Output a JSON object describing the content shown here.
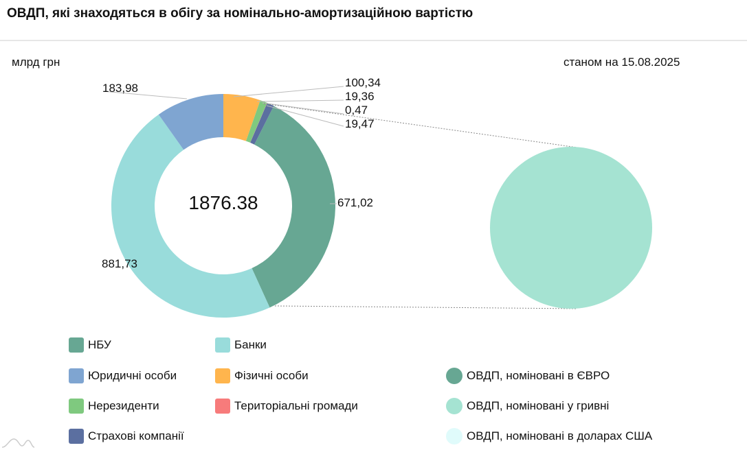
{
  "title": "ОВДП, які знаходяться в обігу за номінально-амортизаційною вартістю",
  "unit": "млрд грн",
  "date": "станом на 15.08.2025",
  "chart_data": [
    {
      "type": "pie",
      "variant": "donut",
      "total_label": "1876.38",
      "slices": [
        {
          "name": "Фізичні особи",
          "value": 100.34,
          "label": "100,34",
          "color": "#ffb54d"
        },
        {
          "name": "Нерезиденти",
          "value": 19.36,
          "label": "19,36",
          "color": "#7fc97f"
        },
        {
          "name": "Територіальні громади",
          "value": 0.47,
          "label": "0,47",
          "color": "#f77b7b"
        },
        {
          "name": "Страхові компанії",
          "value": 19.47,
          "label": "19,47",
          "color": "#5b6fa0"
        },
        {
          "name": "НБУ",
          "value": 671.02,
          "label": "671,02",
          "color": "#67a793"
        },
        {
          "name": "Банки",
          "value": 881.73,
          "label": "881,73",
          "color": "#99dcdb"
        },
        {
          "name": "Юридичні особи",
          "value": 183.98,
          "label": "183,98",
          "color": "#7fa5d1"
        }
      ]
    },
    {
      "type": "pie",
      "slices": [
        {
          "name": "ОВДП, номіновані в ЄВРО",
          "value": 0,
          "color": "#67a793"
        },
        {
          "name": "ОВДП, номіновані у гривні",
          "value": 100,
          "color": "#a5e3d2"
        },
        {
          "name": "ОВДП, номіновані в доларах США",
          "value": 0,
          "color": "#e0fbfb"
        }
      ]
    }
  ],
  "legend": {
    "left": [
      {
        "label": "НБУ",
        "color": "#67a793"
      },
      {
        "label": "Банки",
        "color": "#99dcdb"
      },
      {
        "label": "Юридичні особи",
        "color": "#7fa5d1"
      },
      {
        "label": "Фізичні особи",
        "color": "#ffb54d"
      },
      {
        "label": "Нерезиденти",
        "color": "#7fc97f"
      },
      {
        "label": "Територіальні громади",
        "color": "#f77b7b"
      },
      {
        "label": "Страхові компанії",
        "color": "#5b6fa0"
      }
    ],
    "right": [
      {
        "label": "ОВДП, номіновані в ЄВРО",
        "color": "#67a793"
      },
      {
        "label": "ОВДП, номіновані у гривні",
        "color": "#a5e3d2"
      },
      {
        "label": "ОВДП, номіновані в доларах США",
        "color": "#e0fbfb"
      }
    ]
  }
}
